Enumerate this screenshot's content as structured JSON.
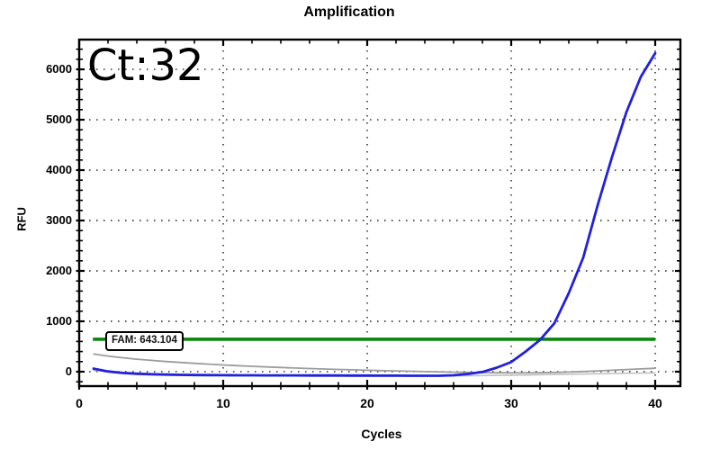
{
  "title": "Amplification",
  "annotation": {
    "ct_label": "Ct:32"
  },
  "threshold": {
    "label": "FAM: 643.104",
    "value": 643.104,
    "color": "#0a860a",
    "x_start": 0.95,
    "x_end": 40
  },
  "axes": {
    "x": {
      "label": "Cycles",
      "tick_labels": [
        "0",
        "10",
        "20",
        "30",
        "40"
      ],
      "tick_values": [
        0,
        10,
        20,
        30,
        40
      ],
      "minor_step": 2
    },
    "y": {
      "label": "RFU",
      "tick_labels": [
        "0",
        "1000",
        "2000",
        "3000",
        "4000",
        "5000",
        "6000"
      ],
      "tick_values": [
        0,
        1000,
        2000,
        3000,
        4000,
        5000,
        6000
      ],
      "minor_step": 200
    }
  },
  "colors": {
    "frame": "#000000",
    "grid_dots": "#1a1a1a",
    "amplification_trace": "#2121dd",
    "baseline_trace": "#9c9c9c",
    "baseline_trace_light": "#c2c2c2",
    "threshold_line": "#0a860a"
  },
  "chart_data": {
    "type": "line",
    "title": "Amplification",
    "xlabel": "Cycles",
    "ylabel": "RFU",
    "xlim": [
      0,
      41.75
    ],
    "ylim": [
      -286,
      6590
    ],
    "grid": "dotted",
    "legend": "none",
    "x": [
      1,
      2,
      3,
      4,
      5,
      6,
      7,
      8,
      9,
      10,
      11,
      12,
      13,
      14,
      15,
      16,
      17,
      18,
      19,
      20,
      21,
      22,
      23,
      24,
      25,
      26,
      27,
      28,
      29,
      30,
      31,
      32,
      33,
      34,
      35,
      36,
      37,
      38,
      39,
      40
    ],
    "series": [
      {
        "name": "baseline-light-gray",
        "color": "#c2c2c2",
        "width": 1.6,
        "values": [
          25,
          5,
          -12,
          -26,
          -38,
          -48,
          -56,
          -62,
          -67,
          -71,
          -75,
          -78,
          -81,
          -83,
          -85,
          -86,
          -87,
          -88,
          -88,
          -88,
          -88,
          -87,
          -86,
          -85,
          -84,
          -82,
          -80,
          -77,
          -74,
          -70,
          -66,
          -61,
          -56,
          -51,
          -46,
          -41,
          -36,
          -31,
          -27,
          -23
        ]
      },
      {
        "name": "baseline-gray",
        "color": "#9c9c9c",
        "width": 1.8,
        "values": [
          350,
          310,
          277,
          248,
          224,
          202,
          183,
          165,
          149,
          134,
          120,
          107,
          95,
          84,
          73,
          63,
          54,
          45,
          37,
          29,
          22,
          15,
          8,
          2,
          -4,
          -10,
          -15,
          -19,
          -22,
          -24,
          -24,
          -21,
          -15,
          -7,
          3,
          15,
          28,
          42,
          55,
          67
        ]
      },
      {
        "name": "fam-amplification",
        "color": "#2121dd",
        "width": 2.8,
        "values": [
          60,
          5,
          -25,
          -42,
          -52,
          -58,
          -62,
          -66,
          -68,
          -70,
          -71,
          -72,
          -73,
          -74,
          -74,
          -75,
          -76,
          -76,
          -77,
          -77,
          -78,
          -79,
          -80,
          -81,
          -80,
          -72,
          -45,
          -5,
          80,
          190,
          400,
          630,
          960,
          1560,
          2260,
          3300,
          4260,
          5150,
          5850,
          6320
        ]
      }
    ],
    "threshold_line": {
      "y": 643.104,
      "label": "FAM: 643.104",
      "color": "#0a860a"
    },
    "ct_value": 32
  }
}
